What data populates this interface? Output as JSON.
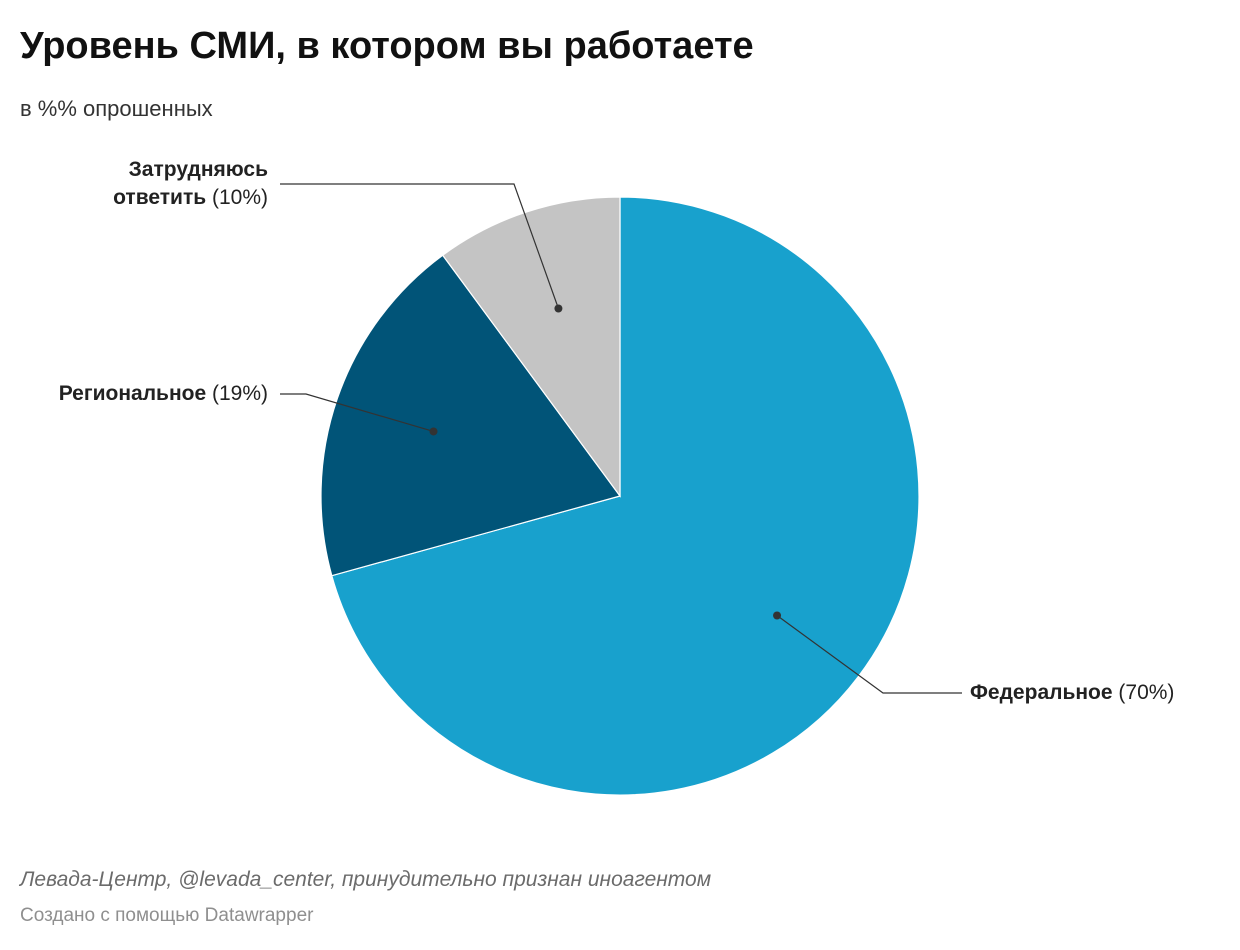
{
  "chart_data": {
    "type": "pie",
    "title": "Уровень СМИ, в котором вы работаете",
    "subtitle": "в %% опрошенных",
    "slices": [
      {
        "label": "Федеральное",
        "label_lines": [
          "Федеральное"
        ],
        "value": 70,
        "value_label": "(70%)",
        "color": "#18a1cd"
      },
      {
        "label": "Региональное",
        "label_lines": [
          "Региональное"
        ],
        "value": 19,
        "value_label": "(19%)",
        "color": "#015478"
      },
      {
        "label": "Затрудняюсь ответить",
        "label_lines": [
          "Затрудняюсь",
          "ответить"
        ],
        "value": 10,
        "value_label": "(10%)",
        "color": "#c4c4c4"
      }
    ],
    "legend": "none"
  },
  "footer": {
    "source": "Левада-Центр, @levada_center, принудительно признан иноагентом",
    "credit": "Создано с помощью Datawrapper"
  }
}
